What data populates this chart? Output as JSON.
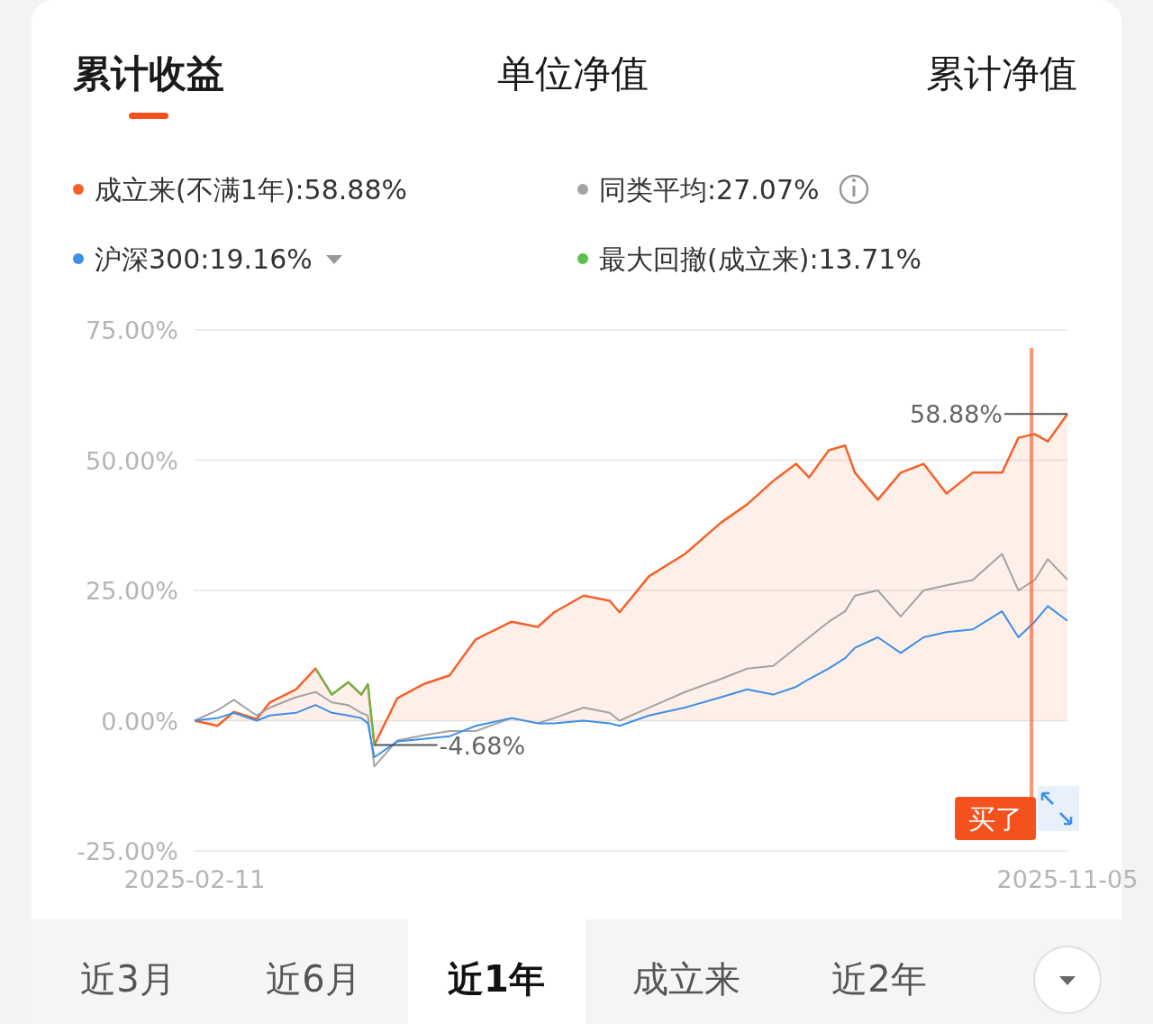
{
  "chart_data": {
    "type": "line",
    "legend": "top left",
    "grid": "y",
    "marker": "none",
    "xlim": [
      "2025-02-11",
      "2025-11-05"
    ],
    "xticks": [
      "2025-02-11",
      "2025-11-05"
    ],
    "ylim": [
      -25,
      75
    ],
    "yticks": [
      {
        "value": -25,
        "label": "-25.00%"
      },
      {
        "value": 0,
        "label": "0.00%"
      },
      {
        "value": 25,
        "label": "25.00%"
      },
      {
        "value": 50,
        "label": "50.00%"
      },
      {
        "value": 75,
        "label": "75.00%"
      }
    ],
    "x": [
      "2025-02-11",
      "2025-02-18",
      "2025-02-23",
      "2025-03-02",
      "2025-03-06",
      "2025-03-14",
      "2025-03-20",
      "2025-03-25",
      "2025-03-30",
      "2025-04-03",
      "2025-04-05",
      "2025-04-07",
      "2025-04-14",
      "2025-04-22",
      "2025-04-30",
      "2025-05-08",
      "2025-05-19",
      "2025-05-27",
      "2025-06-01",
      "2025-06-10",
      "2025-06-18",
      "2025-06-21",
      "2025-06-30",
      "2025-07-11",
      "2025-07-22",
      "2025-07-30",
      "2025-08-07",
      "2025-08-14",
      "2025-08-18",
      "2025-08-24",
      "2025-08-29",
      "2025-09-01",
      "2025-09-08",
      "2025-09-15",
      "2025-09-22",
      "2025-09-29",
      "2025-10-07",
      "2025-10-16",
      "2025-10-21",
      "2025-10-26",
      "2025-10-30",
      "2025-11-05"
    ],
    "series": [
      {
        "name": "成立来(不满1年):58.88%",
        "type": "area",
        "color": "#f4622a",
        "values": [
          0,
          -1,
          1.7,
          0.3,
          3.5,
          6,
          10,
          5,
          7.4,
          5,
          7,
          -4.68,
          4.3,
          7,
          8.7,
          15.6,
          19,
          18,
          20.8,
          24,
          23,
          20.8,
          27.7,
          32,
          38,
          41.5,
          46,
          49.3,
          46.7,
          51.9,
          52.8,
          47.6,
          42.4,
          47.6,
          49.3,
          43.6,
          47.6,
          47.6,
          54.3,
          55,
          53.6,
          58.88
        ]
      },
      {
        "name": "同类平均:27.07%",
        "color": "#a3a3a3",
        "values": [
          0,
          2,
          4,
          1,
          2.5,
          4.5,
          5.5,
          3.5,
          3,
          1.5,
          1,
          -8.8,
          -3.8,
          -2.8,
          -2,
          -2,
          0.5,
          -0.5,
          0.5,
          2.5,
          1.5,
          0,
          2.5,
          5.5,
          8,
          10,
          10.5,
          14,
          16,
          19,
          21,
          24,
          25,
          20,
          25,
          26,
          27,
          32,
          25,
          27,
          31,
          27.07
        ]
      },
      {
        "name": "沪深300:19.16%",
        "color": "#3d8fe8",
        "values": [
          0,
          0.5,
          1.5,
          0,
          1,
          1.5,
          3,
          1.5,
          1,
          0.5,
          -0.5,
          -7,
          -4,
          -3.5,
          -3,
          -1,
          0.5,
          -0.5,
          -0.5,
          0,
          -0.5,
          -1,
          1,
          2.5,
          4.5,
          6,
          5,
          6.5,
          8,
          10,
          12,
          14,
          16,
          13,
          16,
          17,
          17.5,
          21,
          16,
          19,
          22,
          19.16
        ]
      },
      {
        "name": "最大回撤(成立来):13.71%",
        "color": "#5cc04a",
        "x": [
          "2025-03-20",
          "2025-03-25",
          "2025-03-30",
          "2025-04-03",
          "2025-04-05",
          "2025-04-07"
        ],
        "values": [
          10,
          5,
          7.4,
          5,
          7,
          -4.68
        ]
      }
    ],
    "ref_lines": [
      {
        "axis": "x",
        "value": "2025-10-25",
        "label": "买了",
        "color": "#f4511e"
      }
    ],
    "annotations": [
      "累计收益",
      "单位净值",
      "累计净值",
      {
        "text": "58.88%",
        "x": "2025-11-05",
        "y": 58.88
      },
      {
        "text": "-4.68%",
        "x": "2025-04-07",
        "y": -4.68
      },
      "近3月",
      "近6月",
      "近1年",
      "成立来",
      "近2年"
    ]
  }
}
